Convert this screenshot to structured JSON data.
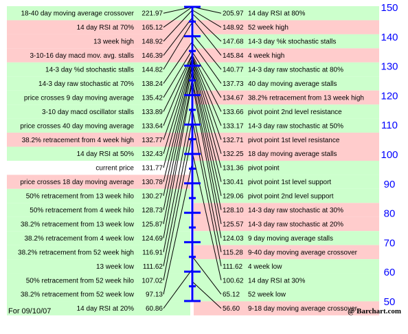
{
  "colors": {
    "green": "#ccffcc",
    "pink": "#ffcccc",
    "white": "#ffffff",
    "axis": "#0000ff",
    "line": "#000000"
  },
  "footer": {
    "date": "For 09/10/07",
    "source": "@ Barchart.com"
  },
  "chart_data": {
    "type": "table",
    "scale": {
      "min": 50,
      "max": 150,
      "major_step": 10,
      "minor_step": 5,
      "ticks": [
        150,
        140,
        130,
        120,
        110,
        100,
        90,
        80,
        70,
        60,
        50
      ]
    },
    "left": [
      {
        "label": "18-40 day moving average crossover",
        "value": "221.97",
        "bg": "green"
      },
      {
        "label": "14 day RSI at 70%",
        "value": "165.12",
        "bg": "pink"
      },
      {
        "label": "13 week high",
        "value": "148.92",
        "bg": "pink"
      },
      {
        "label": "3-10-16 day macd mov. avg. stalls",
        "value": "146.39",
        "bg": "pink"
      },
      {
        "label": "14-3 day %d stochastic stalls",
        "value": "144.82",
        "bg": "green"
      },
      {
        "label": "14-3 day raw stochastic at 70%",
        "value": "138.24",
        "bg": "green"
      },
      {
        "label": "price crosses 9 day moving average",
        "value": "135.42",
        "bg": "green"
      },
      {
        "label": "3-10 day macd oscillator stalls",
        "value": "133.89",
        "bg": "green"
      },
      {
        "label": "price crosses 40 day moving average",
        "value": "133.64",
        "bg": "green"
      },
      {
        "label": "38.2% retracement from 4 week high",
        "value": "132.77",
        "bg": "pink"
      },
      {
        "label": "14 day RSI at 50%",
        "value": "132.43",
        "bg": "green"
      },
      {
        "label": "current price",
        "value": "131.77",
        "bg": "white"
      },
      {
        "label": "price crosses 18 day moving average",
        "value": "130.78",
        "bg": "pink"
      },
      {
        "label": "50% retracement from 13 week hilo",
        "value": "130.27",
        "bg": "green"
      },
      {
        "label": "50% retracement from 4 week hilo",
        "value": "128.73",
        "bg": "green"
      },
      {
        "label": "38.2% retracement from 13 week low",
        "value": "125.87",
        "bg": "green"
      },
      {
        "label": "38.2% retracement from 4 week low",
        "value": "124.69",
        "bg": "green"
      },
      {
        "label": "38.2% retracement from 52 week high",
        "value": "116.91",
        "bg": "green"
      },
      {
        "label": "13 week low",
        "value": "111.62",
        "bg": "green"
      },
      {
        "label": "50% retracement from 52 week hilo",
        "value": "107.02",
        "bg": "green"
      },
      {
        "label": "38.2% retracement from 52 week low",
        "value": "97.13",
        "bg": "green"
      },
      {
        "label": "14 day RSI at 20%",
        "value": "60.86",
        "bg": "green"
      }
    ],
    "right": [
      {
        "label": "14 day RSI at 80%",
        "value": "205.97",
        "bg": "green"
      },
      {
        "label": "52 week high",
        "value": "148.92",
        "bg": "pink"
      },
      {
        "label": "14-3 day %k stochastic stalls",
        "value": "147.68",
        "bg": "green"
      },
      {
        "label": "4 week high",
        "value": "145.84",
        "bg": "pink"
      },
      {
        "label": "14-3 day raw stochastic at 80%",
        "value": "140.77",
        "bg": "green"
      },
      {
        "label": "40 day moving average stalls",
        "value": "137.73",
        "bg": "green"
      },
      {
        "label": "38.2% retracement from 13 week high",
        "value": "134.67",
        "bg": "pink"
      },
      {
        "label": "pivot point 2nd level resistance",
        "value": "133.66",
        "bg": "green"
      },
      {
        "label": "14-3 day raw stochastic at 50%",
        "value": "133.17",
        "bg": "green"
      },
      {
        "label": "pivot point 1st level resistance",
        "value": "132.71",
        "bg": "pink"
      },
      {
        "label": "18 day moving average stalls",
        "value": "132.25",
        "bg": "pink"
      },
      {
        "label": "pivot point",
        "value": "131.36",
        "bg": "green"
      },
      {
        "label": "pivot point 1st level support",
        "value": "130.41",
        "bg": "green"
      },
      {
        "label": "pivot point 2nd level support",
        "value": "129.06",
        "bg": "green"
      },
      {
        "label": "14-3 day raw stochastic at 30%",
        "value": "128.10",
        "bg": "pink"
      },
      {
        "label": "14-3 day raw stochastic at 20%",
        "value": "125.57",
        "bg": "pink"
      },
      {
        "label": "9 day moving average stalls",
        "value": "124.03",
        "bg": "green"
      },
      {
        "label": "9-40 day moving average crossover",
        "value": "115.28",
        "bg": "pink"
      },
      {
        "label": "4 week low",
        "value": "111.62",
        "bg": "green"
      },
      {
        "label": "14 day RSI at 30%",
        "value": "100.62",
        "bg": "green"
      },
      {
        "label": "52 week low",
        "value": "65.12",
        "bg": "green"
      },
      {
        "label": "9-18 day moving average crossover",
        "value": "56.60",
        "bg": "pink"
      }
    ]
  }
}
